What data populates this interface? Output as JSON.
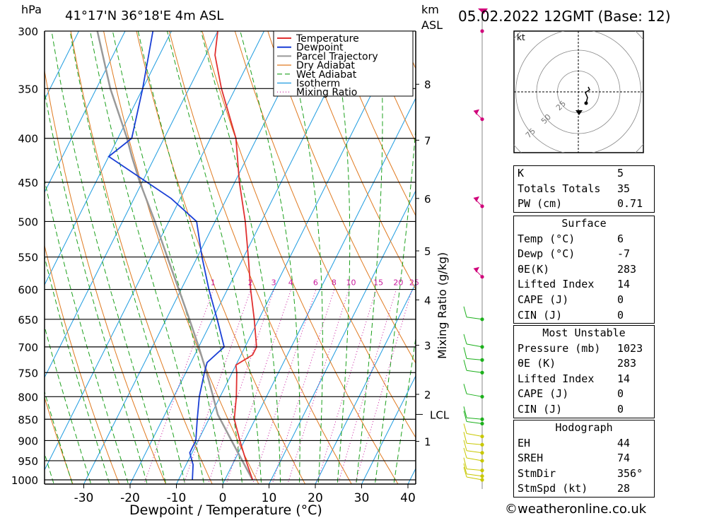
{
  "chart_data": {
    "type": "skew-t",
    "title_location": "41°17'N  36°18'E  4m  ASL",
    "title_date": "05.02.2022  12GMT  (Base: 12)",
    "left_axis_unit": "hPa",
    "height_axis_unit_1": "km",
    "height_axis_unit_2": "ASL",
    "xlabel": "Dewpoint / Temperature (°C)",
    "mixing_ratio_axis_label": "Mixing Ratio (g/kg)",
    "lcl_label": "LCL",
    "pressure_levels": [
      300,
      350,
      400,
      450,
      500,
      550,
      600,
      650,
      700,
      750,
      800,
      850,
      900,
      950,
      1000
    ],
    "temperature_ticks": [
      -30,
      -20,
      -10,
      0,
      10,
      20,
      30,
      40
    ],
    "height_ticks": [
      {
        "km": "8",
        "p": 346
      },
      {
        "km": "7",
        "p": 402
      },
      {
        "km": "6",
        "p": 470
      },
      {
        "km": "5",
        "p": 541
      },
      {
        "km": "4",
        "p": 617
      },
      {
        "km": "3",
        "p": 697
      },
      {
        "km": "2",
        "p": 795
      },
      {
        "km": "1",
        "p": 902
      }
    ],
    "lcl_pressure": 839,
    "mixing_ratio_labels": [
      "1",
      "2",
      "3",
      "4",
      "6",
      "8",
      "10",
      "15",
      "20",
      "25"
    ],
    "mixing_ratio_values": [
      1,
      2,
      3,
      4,
      6,
      8,
      10,
      15,
      20,
      25
    ],
    "legend": [
      "Temperature",
      "Dewpoint",
      "Parcel Trajectory",
      "Dry Adiabat",
      "Wet Adiabat",
      "Isotherm",
      "Mixing Ratio"
    ],
    "colors": {
      "temperature": "#e03030",
      "dewpoint": "#1a3fd6",
      "parcel": "#999999",
      "dry_adiabat": "#e07a20",
      "wet_adiabat": "#1ca01c",
      "isotherm": "#1e9be0",
      "mixing_ratio": "#c8189c",
      "wind_marker": "#d0007a"
    },
    "temperature_profile": [
      {
        "p": 1000,
        "t": 6
      },
      {
        "p": 950,
        "t": 2.5
      },
      {
        "p": 900,
        "t": -1
      },
      {
        "p": 850,
        "t": -4.5
      },
      {
        "p": 800,
        "t": -6.5
      },
      {
        "p": 750,
        "t": -9
      },
      {
        "p": 735,
        "t": -10
      },
      {
        "p": 715,
        "t": -7.5
      },
      {
        "p": 700,
        "t": -7.5
      },
      {
        "p": 650,
        "t": -11
      },
      {
        "p": 600,
        "t": -15
      },
      {
        "p": 550,
        "t": -19
      },
      {
        "p": 500,
        "t": -23.5
      },
      {
        "p": 450,
        "t": -29
      },
      {
        "p": 400,
        "t": -34.5
      },
      {
        "p": 350,
        "t": -43
      },
      {
        "p": 320,
        "t": -48
      },
      {
        "p": 300,
        "t": -50
      }
    ],
    "dewpoint_profile": [
      {
        "p": 1000,
        "t": -7
      },
      {
        "p": 960,
        "t": -8.5
      },
      {
        "p": 930,
        "t": -10.5
      },
      {
        "p": 900,
        "t": -10.5
      },
      {
        "p": 850,
        "t": -12.5
      },
      {
        "p": 800,
        "t": -14.5
      },
      {
        "p": 750,
        "t": -16
      },
      {
        "p": 730,
        "t": -16.5
      },
      {
        "p": 700,
        "t": -14.5
      },
      {
        "p": 650,
        "t": -19
      },
      {
        "p": 600,
        "t": -24
      },
      {
        "p": 550,
        "t": -29
      },
      {
        "p": 500,
        "t": -34
      },
      {
        "p": 470,
        "t": -42
      },
      {
        "p": 420,
        "t": -60
      },
      {
        "p": 400,
        "t": -57
      },
      {
        "p": 350,
        "t": -60
      },
      {
        "p": 300,
        "t": -64
      }
    ],
    "parcel_profile": [
      {
        "p": 1000,
        "t": 6
      },
      {
        "p": 950,
        "t": 1.7
      },
      {
        "p": 900,
        "t": -2.8
      },
      {
        "p": 839,
        "t": -8.6
      },
      {
        "p": 800,
        "t": -11.5
      },
      {
        "p": 750,
        "t": -15.5
      },
      {
        "p": 700,
        "t": -20
      },
      {
        "p": 650,
        "t": -25
      },
      {
        "p": 600,
        "t": -30.5
      },
      {
        "p": 550,
        "t": -36.5
      },
      {
        "p": 500,
        "t": -43
      },
      {
        "p": 450,
        "t": -50.5
      },
      {
        "p": 420,
        "t": -55
      },
      {
        "p": 400,
        "t": -58
      },
      {
        "p": 350,
        "t": -67
      },
      {
        "p": 300,
        "t": -76
      }
    ],
    "wind_levels": [
      1000,
      990,
      975,
      950,
      930,
      910,
      890,
      860,
      850,
      800,
      750,
      725,
      700,
      650,
      580,
      480,
      380,
      300
    ]
  },
  "hodograph": {
    "unit": "kt",
    "ring_labels": [
      "25",
      "50",
      "75"
    ]
  },
  "indices_table": [
    {
      "k": "K",
      "v": "5"
    },
    {
      "k": "Totals Totals",
      "v": "35"
    },
    {
      "k": "PW (cm)",
      "v": "0.71"
    }
  ],
  "surface_table": {
    "header": "Surface",
    "rows": [
      {
        "k": "Temp (°C)",
        "v": "6"
      },
      {
        "k": "Dewp (°C)",
        "v": "-7"
      },
      {
        "k": "θE(K)",
        "v": "283"
      },
      {
        "k": "Lifted Index",
        "v": "14"
      },
      {
        "k": "CAPE (J)",
        "v": "0"
      },
      {
        "k": "CIN (J)",
        "v": "0"
      }
    ]
  },
  "unstable_table": {
    "header": "Most Unstable",
    "rows": [
      {
        "k": "Pressure (mb)",
        "v": "1023"
      },
      {
        "k": "θE (K)",
        "v": "283"
      },
      {
        "k": "Lifted Index",
        "v": "14"
      },
      {
        "k": "CAPE (J)",
        "v": "0"
      },
      {
        "k": "CIN (J)",
        "v": "0"
      }
    ]
  },
  "hodograph_table": {
    "header": "Hodograph",
    "rows": [
      {
        "k": "EH",
        "v": "44"
      },
      {
        "k": "SREH",
        "v": "74"
      },
      {
        "k": "StmDir",
        "v": "356°"
      },
      {
        "k": "StmSpd (kt)",
        "v": "28"
      }
    ]
  },
  "copyright": "©weatheronline.co.uk"
}
